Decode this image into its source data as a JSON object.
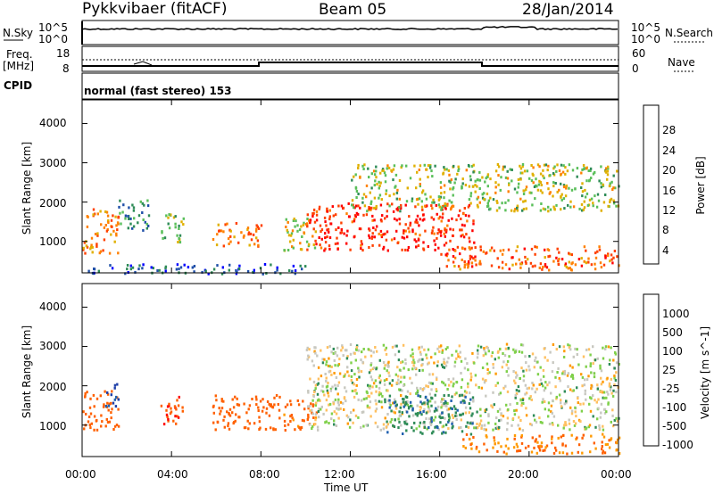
{
  "header": {
    "station": "Pykkvibaer (fitACF)",
    "beam": "Beam 05",
    "date": "28/Jan/2014"
  },
  "top_panel": {
    "left_label": "N.Sky",
    "right_label": "N.Search",
    "left_ticks": [
      "10^5",
      "10^0"
    ],
    "right_ticks": [
      "10^5",
      "10^0"
    ]
  },
  "freq_panel": {
    "left_label_line1": "Freq.",
    "left_label_line2": "[MHz]",
    "right_label": "Nave",
    "left_ticks": [
      "18",
      "8"
    ],
    "right_ticks": [
      "60",
      "0"
    ]
  },
  "cpid": {
    "label": "CPID",
    "text": "normal (fast stereo) 153"
  },
  "x_axis": {
    "ticks": [
      "00:00",
      "04:00",
      "08:00",
      "12:00",
      "16:00",
      "20:00",
      "00:00"
    ],
    "label": "Time UT"
  },
  "colors": {
    "power_scale": [
      "#0000ff",
      "#1f4fa8",
      "#2e8b57",
      "#5abf5a",
      "#e0b000",
      "#ff8000",
      "#ff4000",
      "#ff0000"
    ],
    "velocity_scale": [
      "#ff0000",
      "#ff6000",
      "#ff9a00",
      "#ffc060",
      "#c8c8c0",
      "#7fd04a",
      "#2e8b57",
      "#2060b0",
      "#1f3fa8"
    ]
  },
  "chart_data": [
    {
      "type": "heatmap",
      "title": "Power",
      "ylabel": "Slant Range [km]",
      "y_ticks": [
        "1000",
        "2000",
        "3000",
        "4000"
      ],
      "ylim": [
        200,
        4600
      ],
      "xlim": [
        0,
        24
      ],
      "colorbar_label": "Power [dB]",
      "colorbar_ticks": [
        "4",
        "8",
        "12",
        "16",
        "20",
        "24",
        "28"
      ],
      "colorbar_range": [
        0,
        32
      ],
      "regions": [
        {
          "t0": 0.0,
          "t1": 1.6,
          "r0": 700,
          "r1": 1900,
          "value": 22
        },
        {
          "t0": 1.6,
          "t1": 3.0,
          "r0": 1300,
          "r1": 2100,
          "value": 10
        },
        {
          "t0": 3.5,
          "t1": 4.5,
          "r0": 1000,
          "r1": 1800,
          "value": 15
        },
        {
          "t0": 5.8,
          "t1": 8.0,
          "r0": 900,
          "r1": 1500,
          "value": 22
        },
        {
          "t0": 9.0,
          "t1": 10.5,
          "r0": 800,
          "r1": 1700,
          "value": 18
        },
        {
          "t0": 10.0,
          "t1": 17.5,
          "r0": 800,
          "r1": 2000,
          "value": 28
        },
        {
          "t0": 12.0,
          "t1": 24.0,
          "r0": 1800,
          "r1": 3000,
          "value": 16
        },
        {
          "t0": 16.0,
          "t1": 24.0,
          "r0": 300,
          "r1": 900,
          "value": 24
        },
        {
          "t0": 0.0,
          "t1": 10.0,
          "r0": 200,
          "r1": 450,
          "value": 6
        }
      ]
    },
    {
      "type": "heatmap",
      "title": "Velocity",
      "ylabel": "Slant Range [km]",
      "y_ticks": [
        "1000",
        "2000",
        "3000",
        "4000"
      ],
      "ylim": [
        200,
        4600
      ],
      "xlim": [
        0,
        24
      ],
      "colorbar_label": "Velocity [m s^-1]",
      "colorbar_ticks": [
        "1000",
        "500",
        "100",
        "25",
        "-25",
        "-100",
        "-500",
        "-1000"
      ],
      "colorbar_range": [
        -1000,
        1000
      ],
      "regions": [
        {
          "t0": 0.0,
          "t1": 1.6,
          "r0": 900,
          "r1": 1900,
          "value": -300
        },
        {
          "t0": 1.0,
          "t1": 1.6,
          "r0": 1500,
          "r1": 2100,
          "value": 600
        },
        {
          "t0": 3.5,
          "t1": 4.5,
          "r0": 1000,
          "r1": 1800,
          "value": -400
        },
        {
          "t0": 5.8,
          "t1": 8.8,
          "r0": 900,
          "r1": 1800,
          "value": -200
        },
        {
          "t0": 9.0,
          "t1": 10.5,
          "r0": 900,
          "r1": 1700,
          "value": -150
        },
        {
          "t0": 10.0,
          "t1": 24.0,
          "r0": 900,
          "r1": 3100,
          "value": 0
        },
        {
          "t0": 13.5,
          "t1": 17.5,
          "r0": 800,
          "r1": 1800,
          "value": 80
        },
        {
          "t0": 17.0,
          "t1": 24.0,
          "r0": 300,
          "r1": 800,
          "value": -100
        }
      ]
    }
  ]
}
